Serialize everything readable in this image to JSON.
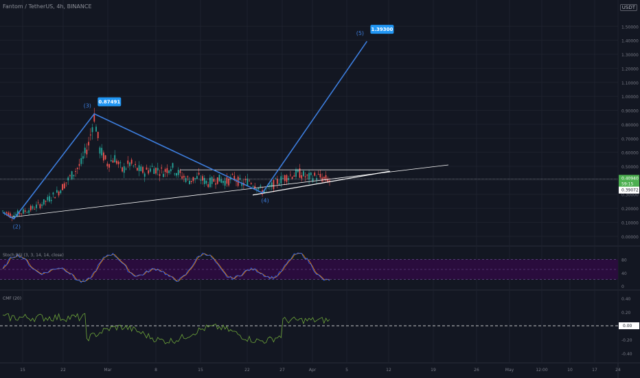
{
  "header": {
    "symbol_title": "Fantom / TetherUS, 4h, BINANCE",
    "currency_pill": "USDT"
  },
  "colors": {
    "background": "#131722",
    "grid": "#1e222d",
    "up_candle": "#26a69a",
    "down_candle": "#ef5350",
    "wave_line": "#3d7ede",
    "label_bg": "#2196f3",
    "trend_line": "#ffffff",
    "price_tag_bg": "#4caf50",
    "stoch_band": "#2a0c3d",
    "stoch_k": "#2962ff",
    "stoch_d": "#ff9800",
    "cmf_line": "#6fa83a"
  },
  "chart_data": [
    {
      "type": "candlestick",
      "title": "Fantom / TetherUS, 4h, BINANCE",
      "price_axis": {
        "ticks": [
          "1.50000",
          "1.40000",
          "1.30000",
          "1.20000",
          "1.10000",
          "1.00000",
          "0.90000",
          "0.80000",
          "0.70000",
          "0.60000",
          "0.50000",
          "0.40000",
          "0.30000",
          "0.20000",
          "0.10000",
          "0.00000"
        ],
        "range": [
          -0.04,
          1.58
        ]
      },
      "time_axis": {
        "ticks": [
          "15",
          "22",
          "Mar",
          "8",
          "15",
          "22",
          "27",
          "Apr",
          "5",
          "12",
          "19",
          "26",
          "May",
          "12:00",
          "10",
          "17",
          "24"
        ]
      },
      "price_tags": {
        "last_price": "0.40940",
        "countdown": "59:15",
        "reference_price": "0.39072"
      },
      "wave_points": [
        {
          "label": "(2)",
          "date_index": 6,
          "price": 0.125
        },
        {
          "label": "(3)",
          "date_index": 49,
          "price": 0.87491,
          "callout": "0.87491"
        },
        {
          "label": "(4)",
          "date_index": 139,
          "price": 0.31
        },
        {
          "label": "(5)",
          "date_index": 195,
          "price": 1.393,
          "callout": "1.39300"
        }
      ],
      "price_profile": [
        [
          0,
          0.18
        ],
        [
          5,
          0.15
        ],
        [
          10,
          0.17
        ],
        [
          16,
          0.2
        ],
        [
          22,
          0.24
        ],
        [
          30,
          0.32
        ],
        [
          36,
          0.42
        ],
        [
          42,
          0.52
        ],
        [
          46,
          0.66
        ],
        [
          49,
          0.86
        ],
        [
          52,
          0.62
        ],
        [
          56,
          0.52
        ],
        [
          60,
          0.56
        ],
        [
          64,
          0.47
        ],
        [
          68,
          0.52
        ],
        [
          72,
          0.48
        ],
        [
          76,
          0.46
        ],
        [
          80,
          0.49
        ],
        [
          86,
          0.46
        ],
        [
          90,
          0.5
        ],
        [
          95,
          0.44
        ],
        [
          100,
          0.4
        ],
        [
          105,
          0.42
        ],
        [
          110,
          0.38
        ],
        [
          115,
          0.41
        ],
        [
          120,
          0.39
        ],
        [
          124,
          0.42
        ],
        [
          128,
          0.37
        ],
        [
          132,
          0.4
        ],
        [
          136,
          0.36
        ],
        [
          139,
          0.32
        ],
        [
          143,
          0.35
        ],
        [
          147,
          0.39
        ],
        [
          151,
          0.42
        ],
        [
          155,
          0.44
        ],
        [
          159,
          0.45
        ],
        [
          163,
          0.42
        ],
        [
          168,
          0.43
        ],
        [
          172,
          0.41
        ],
        [
          175,
          0.4
        ]
      ]
    },
    {
      "type": "line",
      "name": "Stoch RSI",
      "legend": "Stoch RSI (3, 3, 14, 14, close)",
      "ticks": [
        "80",
        "40",
        "0"
      ],
      "range": [
        -8,
        108
      ],
      "band": [
        20,
        80
      ]
    },
    {
      "type": "line",
      "name": "CMF",
      "legend": "CMF (20)",
      "ticks": [
        "0.40",
        "0.20",
        "0.00",
        "-0.20",
        "-0.40"
      ],
      "range": [
        -0.48,
        0.48
      ],
      "current_value": "0.00"
    }
  ]
}
